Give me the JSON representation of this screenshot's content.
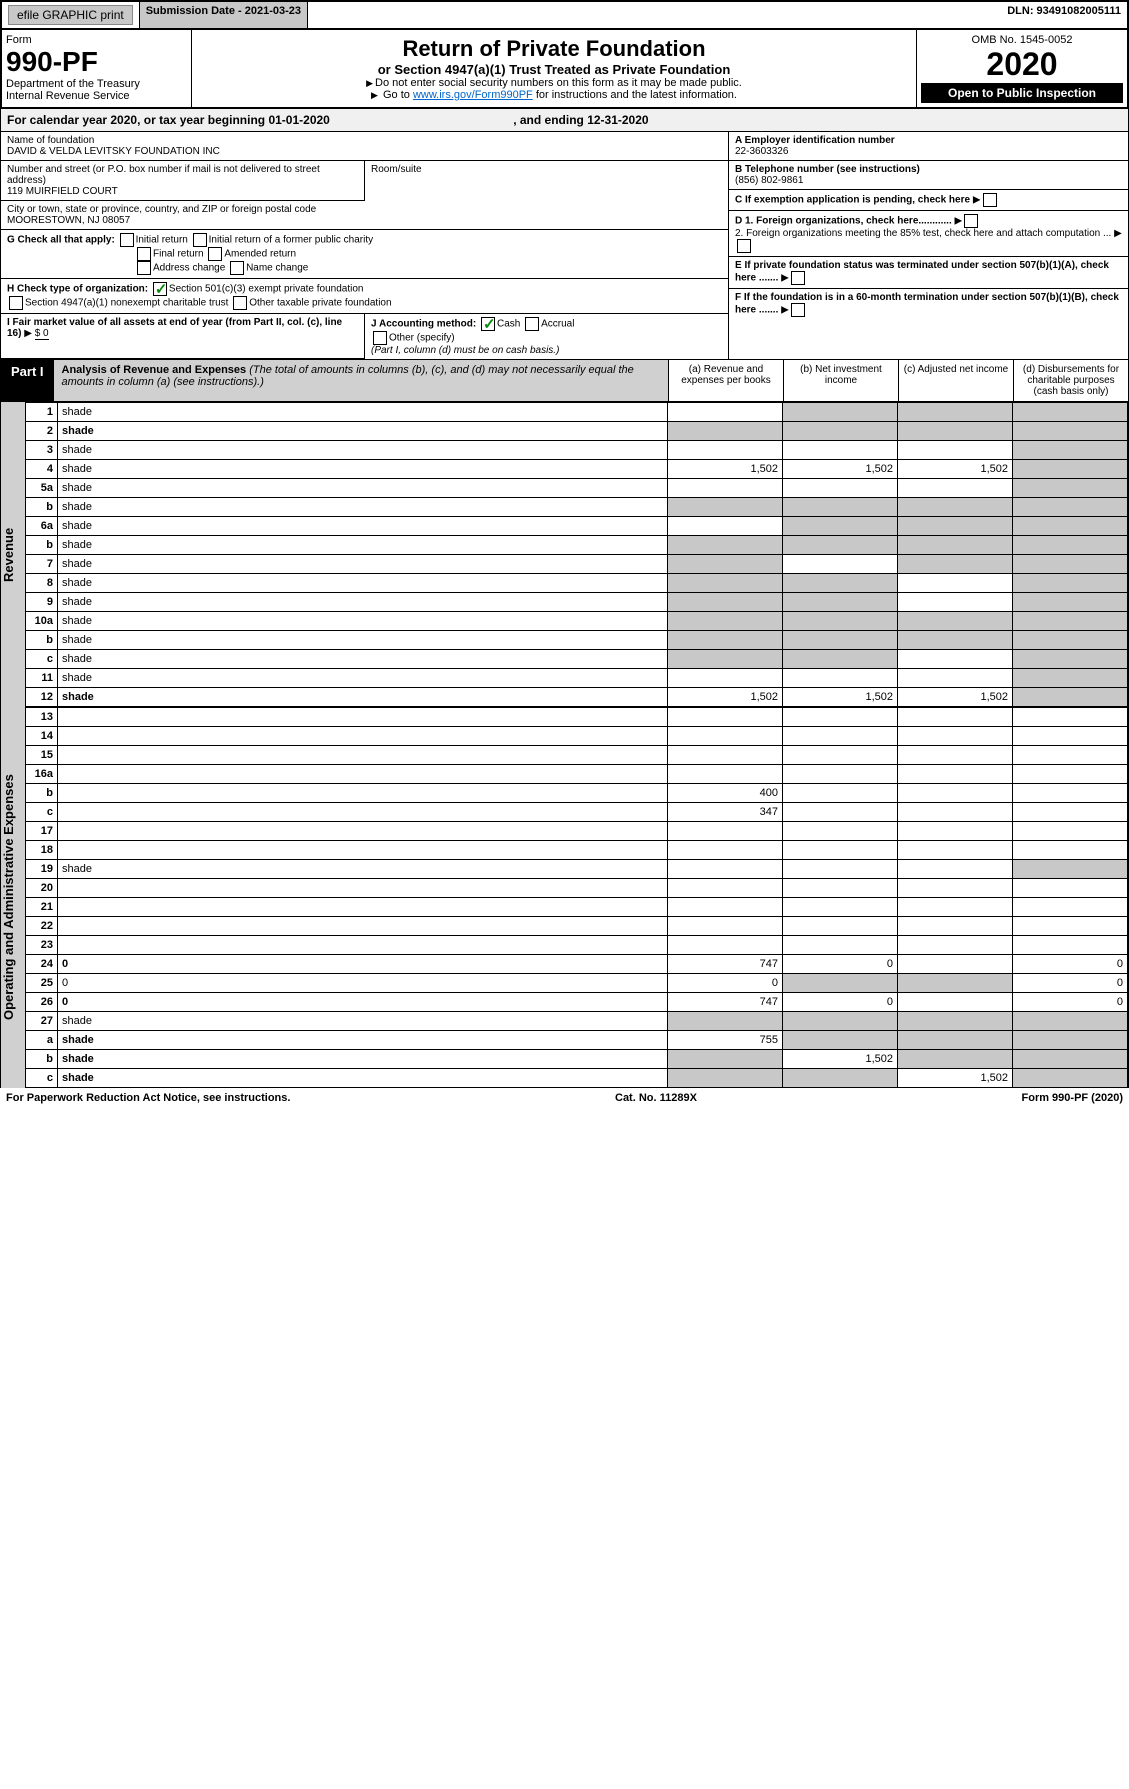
{
  "topbar": {
    "efile": "efile GRAPHIC print",
    "subdate_label": "Submission Date - 2021-03-23",
    "dln": "DLN: 93491082005111"
  },
  "header": {
    "form_label": "Form",
    "form_num": "990-PF",
    "dept": "Department of the Treasury",
    "irs": "Internal Revenue Service",
    "title": "Return of Private Foundation",
    "subtitle": "or Section 4947(a)(1) Trust Treated as Private Foundation",
    "note1": "Do not enter social security numbers on this form as it may be made public.",
    "note2_pre": "Go to ",
    "note2_link": "www.irs.gov/Form990PF",
    "note2_post": " for instructions and the latest information.",
    "omb": "OMB No. 1545-0052",
    "year": "2020",
    "inspect": "Open to Public Inspection"
  },
  "calrow": {
    "pre": "For calendar year 2020, or tax year beginning ",
    "begin": "01-01-2020",
    "mid": " , and ending ",
    "end": "12-31-2020"
  },
  "info": {
    "name_label": "Name of foundation",
    "name": "DAVID & VELDA LEVITSKY FOUNDATION INC",
    "addr_label": "Number and street (or P.O. box number if mail is not delivered to street address)",
    "addr": "119 MUIRFIELD COURT",
    "room_label": "Room/suite",
    "city_label": "City or town, state or province, country, and ZIP or foreign postal code",
    "city": "MOORESTOWN, NJ  08057",
    "a_label": "A Employer identification number",
    "a_val": "22-3603326",
    "b_label": "B Telephone number (see instructions)",
    "b_val": "(856) 802-9861",
    "c_label": "C If exemption application is pending, check here",
    "d1": "D 1. Foreign organizations, check here............",
    "d2": "2. Foreign organizations meeting the 85% test, check here and attach computation ...",
    "e": "E  If private foundation status was terminated under section 507(b)(1)(A), check here .......",
    "f": "F  If the foundation is in a 60-month termination under section 507(b)(1)(B), check here .......",
    "g_label": "G Check all that apply:",
    "g_opts": [
      "Initial return",
      "Initial return of a former public charity",
      "Final return",
      "Amended return",
      "Address change",
      "Name change"
    ],
    "h_label": "H Check type of organization:",
    "h_opts": [
      "Section 501(c)(3) exempt private foundation",
      "Section 4947(a)(1) nonexempt charitable trust",
      "Other taxable private foundation"
    ],
    "i_label": "I Fair market value of all assets at end of year (from Part II, col. (c), line 16)",
    "i_val": "$  0",
    "j_label": "J Accounting method:",
    "j_opts": [
      "Cash",
      "Accrual",
      "Other (specify)"
    ],
    "j_note": "(Part I, column (d) must be on cash basis.)"
  },
  "part1": {
    "label": "Part I",
    "title": "Analysis of Revenue and Expenses",
    "desc": " (The total of amounts in columns (b), (c), and (d) may not necessarily equal the amounts in column (a) (see instructions).)",
    "cols": [
      "(a)   Revenue and expenses per books",
      "(b)  Net investment income",
      "(c)  Adjusted net income",
      "(d)  Disbursements for charitable purposes (cash basis only)"
    ]
  },
  "sides": {
    "rev": "Revenue",
    "exp": "Operating and Administrative Expenses"
  },
  "rows": [
    {
      "n": "1",
      "d": "shade",
      "a": "",
      "b": "shade",
      "c": "shade"
    },
    {
      "n": "2",
      "d": "shade",
      "a": "shade",
      "b": "shade",
      "c": "shade",
      "bold": true
    },
    {
      "n": "3",
      "d": "shade",
      "a": "",
      "b": "",
      "c": ""
    },
    {
      "n": "4",
      "d": "shade",
      "a": "1,502",
      "b": "1,502",
      "c": "1,502"
    },
    {
      "n": "5a",
      "d": "shade",
      "a": "",
      "b": "",
      "c": ""
    },
    {
      "n": "b",
      "d": "shade",
      "a": "shade",
      "b": "shade",
      "c": "shade"
    },
    {
      "n": "6a",
      "d": "shade",
      "a": "",
      "b": "shade",
      "c": "shade"
    },
    {
      "n": "b",
      "d": "shade",
      "a": "shade",
      "b": "shade",
      "c": "shade"
    },
    {
      "n": "7",
      "d": "shade",
      "a": "shade",
      "b": "",
      "c": "shade"
    },
    {
      "n": "8",
      "d": "shade",
      "a": "shade",
      "b": "shade",
      "c": ""
    },
    {
      "n": "9",
      "d": "shade",
      "a": "shade",
      "b": "shade",
      "c": ""
    },
    {
      "n": "10a",
      "d": "shade",
      "a": "shade",
      "b": "shade",
      "c": "shade"
    },
    {
      "n": "b",
      "d": "shade",
      "a": "shade",
      "b": "shade",
      "c": "shade"
    },
    {
      "n": "c",
      "d": "shade",
      "a": "shade",
      "b": "shade",
      "c": ""
    },
    {
      "n": "11",
      "d": "shade",
      "a": "",
      "b": "",
      "c": ""
    },
    {
      "n": "12",
      "d": "shade",
      "a": "1,502",
      "b": "1,502",
      "c": "1,502",
      "bold": true
    }
  ],
  "rows2": [
    {
      "n": "13",
      "d": "",
      "a": "",
      "b": "",
      "c": ""
    },
    {
      "n": "14",
      "d": "",
      "a": "",
      "b": "",
      "c": ""
    },
    {
      "n": "15",
      "d": "",
      "a": "",
      "b": "",
      "c": ""
    },
    {
      "n": "16a",
      "d": "",
      "a": "",
      "b": "",
      "c": ""
    },
    {
      "n": "b",
      "d": "",
      "a": "400",
      "b": "",
      "c": ""
    },
    {
      "n": "c",
      "d": "",
      "a": "347",
      "b": "",
      "c": ""
    },
    {
      "n": "17",
      "d": "",
      "a": "",
      "b": "",
      "c": ""
    },
    {
      "n": "18",
      "d": "",
      "a": "",
      "b": "",
      "c": ""
    },
    {
      "n": "19",
      "d": "shade",
      "a": "",
      "b": "",
      "c": ""
    },
    {
      "n": "20",
      "d": "",
      "a": "",
      "b": "",
      "c": ""
    },
    {
      "n": "21",
      "d": "",
      "a": "",
      "b": "",
      "c": ""
    },
    {
      "n": "22",
      "d": "",
      "a": "",
      "b": "",
      "c": ""
    },
    {
      "n": "23",
      "d": "",
      "a": "",
      "b": "",
      "c": ""
    },
    {
      "n": "24",
      "d": "0",
      "a": "747",
      "b": "0",
      "c": "",
      "bold": true
    },
    {
      "n": "25",
      "d": "0",
      "a": "0",
      "b": "shade",
      "c": "shade"
    },
    {
      "n": "26",
      "d": "0",
      "a": "747",
      "b": "0",
      "c": "",
      "bold": true
    },
    {
      "n": "27",
      "d": "shade",
      "a": "shade",
      "b": "shade",
      "c": "shade"
    },
    {
      "n": "a",
      "d": "shade",
      "a": "755",
      "b": "shade",
      "c": "shade",
      "bold": true
    },
    {
      "n": "b",
      "d": "shade",
      "a": "shade",
      "b": "1,502",
      "c": "shade",
      "bold": true
    },
    {
      "n": "c",
      "d": "shade",
      "a": "shade",
      "b": "shade",
      "c": "1,502",
      "bold": true
    }
  ],
  "footer": {
    "left": "For Paperwork Reduction Act Notice, see instructions.",
    "mid": "Cat. No. 11289X",
    "right": "Form 990-PF (2020)"
  }
}
